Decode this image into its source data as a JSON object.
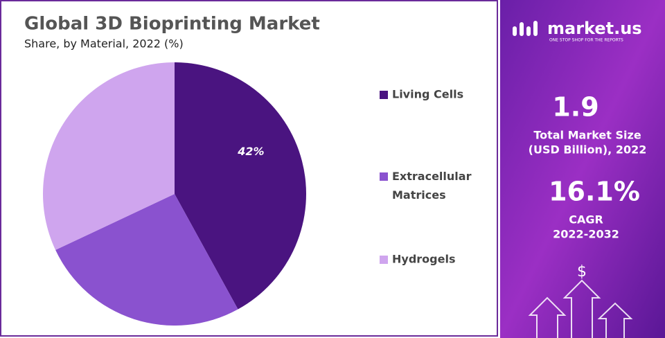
{
  "chart_data": {
    "type": "pie",
    "title": "Global 3D Bioprinting Market",
    "subtitle": "Share, by Material, 2022 (%)",
    "categories": [
      "Living Cells",
      "Extracellular Matrices",
      "Hydrogels"
    ],
    "values": [
      42,
      26,
      32
    ],
    "value_labels": [
      "42%",
      null,
      null
    ],
    "colors": [
      "#4a1480",
      "#8a52cf",
      "#cfa5ee"
    ],
    "legend": "right"
  },
  "panel": {
    "brand": "market.us",
    "tagline": "ONE STOP SHOP FOR THE REPORTS",
    "stats": [
      {
        "value": "1.9",
        "label": [
          "Total Market Size",
          "(USD Billion), 2022"
        ]
      },
      {
        "value": "16.1%",
        "label": [
          "CAGR",
          "2022-2032"
        ]
      }
    ],
    "icon": "$"
  }
}
